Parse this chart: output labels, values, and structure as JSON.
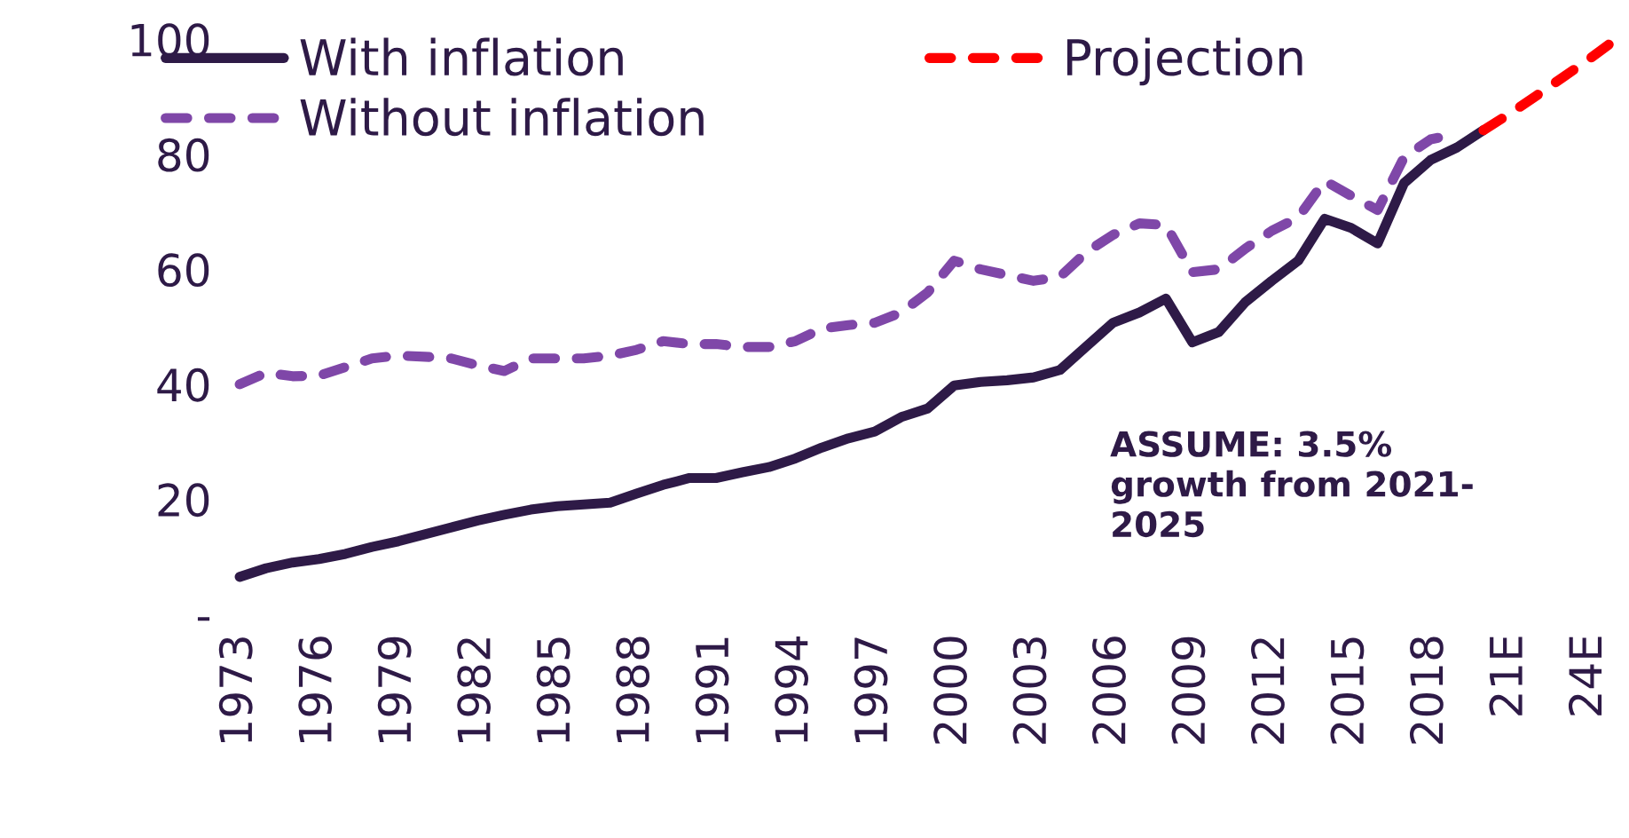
{
  "chart_data": {
    "type": "line",
    "categories": [
      "1973",
      null,
      null,
      "1976",
      null,
      null,
      "1979",
      null,
      null,
      "1982",
      null,
      null,
      "1985",
      null,
      null,
      "1988",
      null,
      null,
      "1991",
      null,
      null,
      "1994",
      null,
      null,
      "1997",
      null,
      null,
      "2000",
      null,
      null,
      "2003",
      null,
      null,
      "2006",
      null,
      null,
      "2009",
      null,
      null,
      "2012",
      null,
      null,
      "2015",
      null,
      null,
      "2018",
      null,
      null,
      "21E",
      null,
      null,
      "24E",
      null
    ],
    "series": [
      {
        "name": "With inflation",
        "color": "#2e1a47",
        "line_style": "solid",
        "values": [
          6.5,
          8,
          9,
          9.6,
          10.5,
          11.7,
          12.7,
          13.9,
          15.1,
          16.3,
          17.3,
          18.2,
          18.8,
          19.1,
          19.4,
          21,
          22.5,
          23.7,
          23.7,
          24.7,
          25.6,
          27.1,
          29,
          30.6,
          31.8,
          34.3,
          35.8,
          39.8,
          40.4,
          40.7,
          41.2,
          42.5,
          46.6,
          50.7,
          52.5,
          54.9,
          47.3,
          49.1,
          54.3,
          58,
          61.5,
          68.8,
          67.2,
          64.5,
          75,
          79,
          81.2,
          84.2,
          null,
          null,
          null,
          null,
          null
        ]
      },
      {
        "name": "Without inflation",
        "color": "#7f47a8",
        "line_style": "dashed",
        "values": [
          40,
          42,
          41.4,
          41.5,
          43,
          44.5,
          45,
          44.8,
          44.5,
          43.3,
          42.3,
          44.5,
          44.5,
          44.5,
          45,
          46,
          47.5,
          47,
          47,
          46.5,
          46.5,
          47.5,
          49.7,
          50.3,
          50.7,
          52.5,
          56,
          61.5,
          60,
          59,
          58,
          58.7,
          63,
          66,
          68,
          67.7,
          59.5,
          60,
          63.6,
          66.7,
          69,
          75.4,
          72.8,
          70.3,
          79.5,
          82.6,
          83.6,
          null,
          null,
          null,
          null,
          null,
          null
        ]
      },
      {
        "name": "Projection",
        "color": "#ff0000",
        "line_style": "dashed",
        "values": [
          null,
          null,
          null,
          null,
          null,
          null,
          null,
          null,
          null,
          null,
          null,
          null,
          null,
          null,
          null,
          null,
          null,
          null,
          null,
          null,
          null,
          null,
          null,
          null,
          null,
          null,
          null,
          null,
          null,
          null,
          null,
          null,
          null,
          null,
          null,
          null,
          null,
          null,
          null,
          null,
          null,
          null,
          null,
          null,
          null,
          null,
          null,
          84.2,
          87.1,
          90.2,
          93.4,
          96.6,
          100.0
        ]
      }
    ],
    "ylim": [
      0,
      100
    ],
    "yticks": [
      {
        "value": 0,
        "label": "-"
      },
      20,
      40,
      60,
      80,
      100
    ],
    "annotations": [
      "ASSUME: 3.5%\ngrowth from 2021-\n2025"
    ],
    "legend": "top left",
    "grid": false
  }
}
